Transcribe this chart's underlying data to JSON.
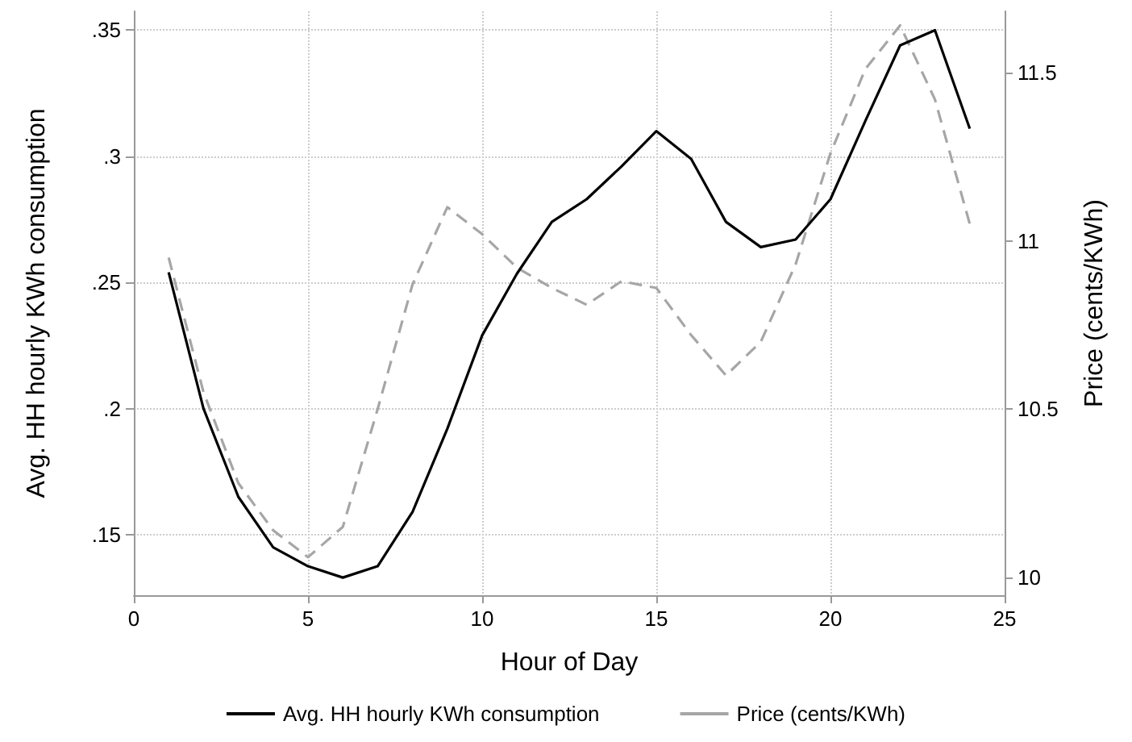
{
  "chart_data": {
    "type": "line",
    "xlabel": "Hour of Day",
    "ylabel": "Avg. HH hourly KWh consumption",
    "y2label": "Price (cents/KWh)",
    "x": [
      1,
      2,
      3,
      4,
      5,
      6,
      7,
      8,
      9,
      10,
      11,
      12,
      13,
      14,
      15,
      16,
      17,
      18,
      19,
      20,
      21,
      22,
      23,
      24
    ],
    "series": [
      {
        "name": "Avg. HH hourly KWh consumption",
        "color": "#000000",
        "line_style": "solid",
        "values": [
          0.254,
          0.2,
          0.165,
          0.145,
          0.1375,
          0.133,
          0.1375,
          0.159,
          0.192,
          0.229,
          0.2535,
          0.274,
          0.283,
          0.296,
          0.31,
          0.299,
          0.274,
          0.264,
          0.267,
          0.283,
          0.314,
          0.344,
          0.35,
          0.311
        ]
      },
      {
        "name": "Price (cents/KWh)",
        "color": "#a6a6a6",
        "line_style": "dashed",
        "axis": "y2",
        "values": [
          10.95,
          10.55,
          10.28,
          10.14,
          10.06,
          10.15,
          10.5,
          10.87,
          11.1,
          11.02,
          10.92,
          10.86,
          10.81,
          10.88,
          10.86,
          10.72,
          10.6,
          10.7,
          10.93,
          11.26,
          11.51,
          11.64,
          11.42,
          11.05
        ]
      }
    ],
    "xlim": [
      0,
      25
    ],
    "xticks": [
      0,
      5,
      10,
      15,
      20,
      25
    ],
    "ylim": [
      0.126,
      0.3575
    ],
    "yticks": [
      {
        "value": 0.15,
        "label": ".15"
      },
      {
        "value": 0.2,
        "label": ".2"
      },
      {
        "value": 0.25,
        "label": ".25"
      },
      {
        "value": 0.3,
        "label": ".3"
      },
      {
        "value": 0.35,
        "label": ".35"
      }
    ],
    "y2lim": [
      9.947,
      11.682
    ],
    "y2ticks": [
      10,
      10.5,
      11,
      11.5
    ],
    "grid": true,
    "legend": "bottom",
    "marker": "none"
  }
}
